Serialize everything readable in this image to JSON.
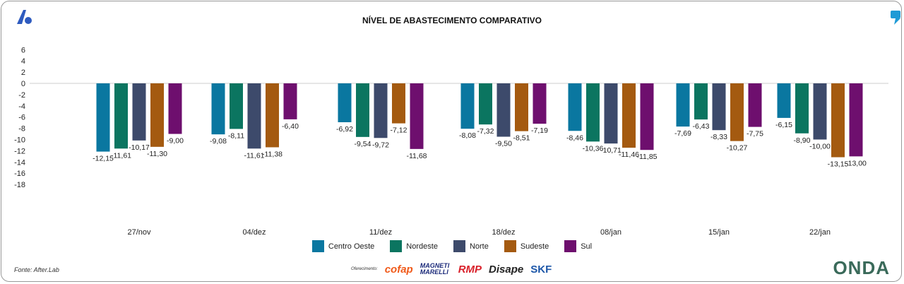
{
  "chart_data": {
    "type": "bar",
    "title": "NÍVEL DE ABASTECIMENTO COMPARATIVO",
    "categories": [
      "27/nov",
      "04/dez",
      "11/dez",
      "18/dez",
      "08/jan",
      "15/jan",
      "22/jan"
    ],
    "series": [
      {
        "name": "Centro Oeste",
        "color": "#0a77a0",
        "values": [
          -12.15,
          -9.08,
          -6.92,
          -8.08,
          -8.46,
          -7.69,
          -6.15
        ],
        "labels": [
          "-12,15",
          "-9,08",
          "-6,92",
          "-8,08",
          "-8,46",
          "-7,69",
          "-6,15"
        ]
      },
      {
        "name": "Nordeste",
        "color": "#0b7560",
        "values": [
          -11.61,
          -8.11,
          -9.54,
          -7.32,
          -10.36,
          -6.43,
          -8.9
        ],
        "labels": [
          "-11,61",
          "-8,11",
          "-9,54",
          "-7,32",
          "-10,36",
          "-6,43",
          "-8,90"
        ]
      },
      {
        "name": "Norte",
        "color": "#3d4a6b",
        "values": [
          -10.17,
          -11.61,
          -9.72,
          -9.5,
          -10.71,
          -8.33,
          -10.0
        ],
        "labels": [
          "-10,17",
          "-11,61",
          "-9,72",
          "-9,50",
          "-10,71",
          "-8,33",
          "-10,00"
        ]
      },
      {
        "name": "Sudeste",
        "color": "#a45a10",
        "values": [
          -11.3,
          -11.38,
          -7.12,
          -8.51,
          -11.46,
          -10.27,
          -13.15
        ],
        "labels": [
          "-11,30",
          "-11,38",
          "-7,12",
          "-8,51",
          "-11,46",
          "-10,27",
          "-13,15"
        ]
      },
      {
        "name": "Sul",
        "color": "#6e0f6e",
        "values": [
          -9.0,
          -6.4,
          -11.68,
          -7.19,
          -11.85,
          -7.75,
          -13.0
        ],
        "labels": [
          "-9,00",
          "-6,40",
          "-11,68",
          "-7,19",
          "-11,85",
          "-7,75",
          "-13,00"
        ]
      }
    ],
    "yticks": [
      6,
      4,
      2,
      0,
      -2,
      -4,
      -6,
      -8,
      -10,
      -12,
      -14,
      -16,
      -18
    ],
    "ylim": [
      -18,
      6
    ],
    "xlabel": "",
    "ylabel": "",
    "grid": false,
    "legend": "bottom"
  },
  "footer": {
    "source": "Fonte: After.Lab",
    "sponsor_label": "Oferecimento:",
    "sponsors": [
      "cofap",
      "MAGNETI MARELLI",
      "RMP",
      "Disape",
      "SKF"
    ],
    "brand": "ONDA"
  }
}
